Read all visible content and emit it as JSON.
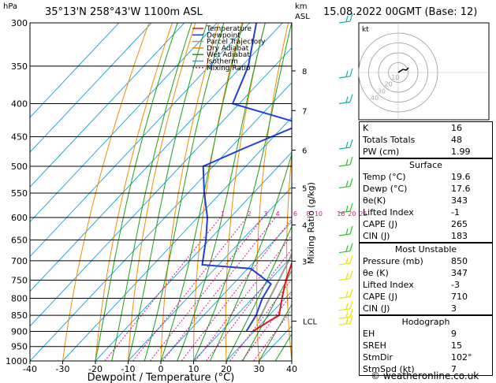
{
  "header": {
    "hpa_label": "hPa",
    "location": "35°13'N  258°43'W  1100m  ASL",
    "km_label": "km",
    "asl_label": "ASL",
    "datetime": "15.08.2022  00GMT  (Base: 12)"
  },
  "legend": [
    "Temperature",
    "Dewpoint",
    "Parcel Trajectory",
    "Dry Adiabat",
    "Wet Adiabat",
    "Isotherm",
    "Mixing Ratio"
  ],
  "colors": {
    "temperature": "#e8141c",
    "dewpoint": "#1f3fd8",
    "parcel": "#9a9a9a",
    "dry_adiabat": "#f08c00",
    "wet_adiabat": "#1aa01a",
    "isotherm": "#2aa8e0",
    "mixing_ratio": "#e0149a",
    "wind_barbs": [
      "#14b4a0",
      "#30c030",
      "#e6e600"
    ]
  },
  "chart_data": {
    "type": "skew-t",
    "xlabel": "Dewpoint / Temperature (°C)",
    "ylabel": "hPa",
    "mixing_ratio_axis_label": "Mixing Ratio (g/kg)",
    "x_ticks": [
      -40,
      -30,
      -20,
      -10,
      0,
      10,
      20,
      30,
      40
    ],
    "pressure_levels": [
      300,
      350,
      400,
      450,
      500,
      550,
      600,
      650,
      700,
      750,
      800,
      850,
      900,
      950,
      1000
    ],
    "km_ticks": [
      {
        "label": "8",
        "p": 356
      },
      {
        "label": "7",
        "p": 410
      },
      {
        "label": "6",
        "p": 472
      },
      {
        "label": "5",
        "p": 540
      },
      {
        "label": "4",
        "p": 616
      },
      {
        "label": "3",
        "p": 701
      }
    ],
    "lcl": {
      "label": "LCL",
      "p": 868
    },
    "mixing_ratio_labels": [
      "1",
      "2",
      "3",
      "4",
      "6",
      "8",
      "10",
      "16",
      "20",
      "25"
    ],
    "mixing_ratio_values": [
      1,
      2,
      3,
      4,
      6,
      8,
      10,
      16,
      20,
      25
    ],
    "temperature": [
      {
        "p": 900,
        "t": 19.6
      },
      {
        "p": 870,
        "t": 21.5
      },
      {
        "p": 850,
        "t": 23.0
      },
      {
        "p": 800,
        "t": 19.0
      },
      {
        "p": 750,
        "t": 15.0
      },
      {
        "p": 700,
        "t": 11.5
      },
      {
        "p": 650,
        "t": 5.5
      },
      {
        "p": 600,
        "t": 0.0
      },
      {
        "p": 550,
        "t": -5.5
      },
      {
        "p": 500,
        "t": -11.0
      },
      {
        "p": 450,
        "t": -17.5
      },
      {
        "p": 420,
        "t": -23.0
      },
      {
        "p": 400,
        "t": -26.0
      },
      {
        "p": 350,
        "t": -34.5
      },
      {
        "p": 300,
        "t": -45.0
      }
    ],
    "dewpoint": [
      {
        "p": 900,
        "t": 17.6
      },
      {
        "p": 850,
        "t": 16.0
      },
      {
        "p": 800,
        "t": 13.0
      },
      {
        "p": 760,
        "t": 11.5
      },
      {
        "p": 720,
        "t": 1.0
      },
      {
        "p": 710,
        "t": -15.0
      },
      {
        "p": 650,
        "t": -21.0
      },
      {
        "p": 600,
        "t": -27.0
      },
      {
        "p": 550,
        "t": -35.0
      },
      {
        "p": 500,
        "t": -43.0
      },
      {
        "p": 470,
        "t": -36.0
      },
      {
        "p": 430,
        "t": -25.0
      },
      {
        "p": 400,
        "t": -52.0
      },
      {
        "p": 350,
        "t": -58.0
      },
      {
        "p": 300,
        "t": -68.0
      }
    ],
    "parcel": [
      {
        "p": 868,
        "t": 18.3
      },
      {
        "p": 800,
        "t": 15.2
      },
      {
        "p": 700,
        "t": 10.3
      },
      {
        "p": 600,
        "t": 3.5
      },
      {
        "p": 500,
        "t": -6.5
      },
      {
        "p": 400,
        "t": -20.5
      },
      {
        "p": 300,
        "t": -42.0
      }
    ],
    "barbs": [
      {
        "p": 880
      },
      {
        "p": 860
      },
      {
        "p": 835
      },
      {
        "p": 800
      },
      {
        "p": 750
      },
      {
        "p": 710
      },
      {
        "p": 680
      },
      {
        "p": 640
      },
      {
        "p": 590
      },
      {
        "p": 540
      },
      {
        "p": 500
      },
      {
        "p": 470
      },
      {
        "p": 400
      },
      {
        "p": 365
      },
      {
        "p": 300
      }
    ],
    "hodograph": {
      "label": "kt",
      "ring_labels": [
        "40",
        "30",
        "20",
        "10"
      ]
    }
  },
  "indices": {
    "rows": [
      {
        "k": "K",
        "v": "16"
      },
      {
        "k": "Totals Totals",
        "v": "48"
      },
      {
        "k": "PW (cm)",
        "v": "1.99"
      }
    ]
  },
  "surface": {
    "title": "Surface",
    "rows": [
      {
        "k": "Temp (°C)",
        "v": "19.6"
      },
      {
        "k": "Dewp (°C)",
        "v": "17.6"
      },
      {
        "k": "θe(K)",
        "v": "343"
      },
      {
        "k": "Lifted Index",
        "v": "-1"
      },
      {
        "k": "CAPE (J)",
        "v": "265"
      },
      {
        "k": "CIN (J)",
        "v": "183"
      }
    ]
  },
  "most_unstable": {
    "title": "Most Unstable",
    "rows": [
      {
        "k": "Pressure (mb)",
        "v": "850"
      },
      {
        "k": "θe (K)",
        "v": "347"
      },
      {
        "k": "Lifted Index",
        "v": "-3"
      },
      {
        "k": "CAPE (J)",
        "v": "710"
      },
      {
        "k": "CIN (J)",
        "v": "3"
      }
    ]
  },
  "hodograph_table": {
    "title": "Hodograph",
    "rows": [
      {
        "k": "EH",
        "v": "9"
      },
      {
        "k": "SREH",
        "v": "15"
      },
      {
        "k": "StmDir",
        "v": "102°"
      },
      {
        "k": "StmSpd (kt)",
        "v": "7"
      }
    ]
  },
  "footer": {
    "copyright": "© weatheronline.co.uk"
  }
}
